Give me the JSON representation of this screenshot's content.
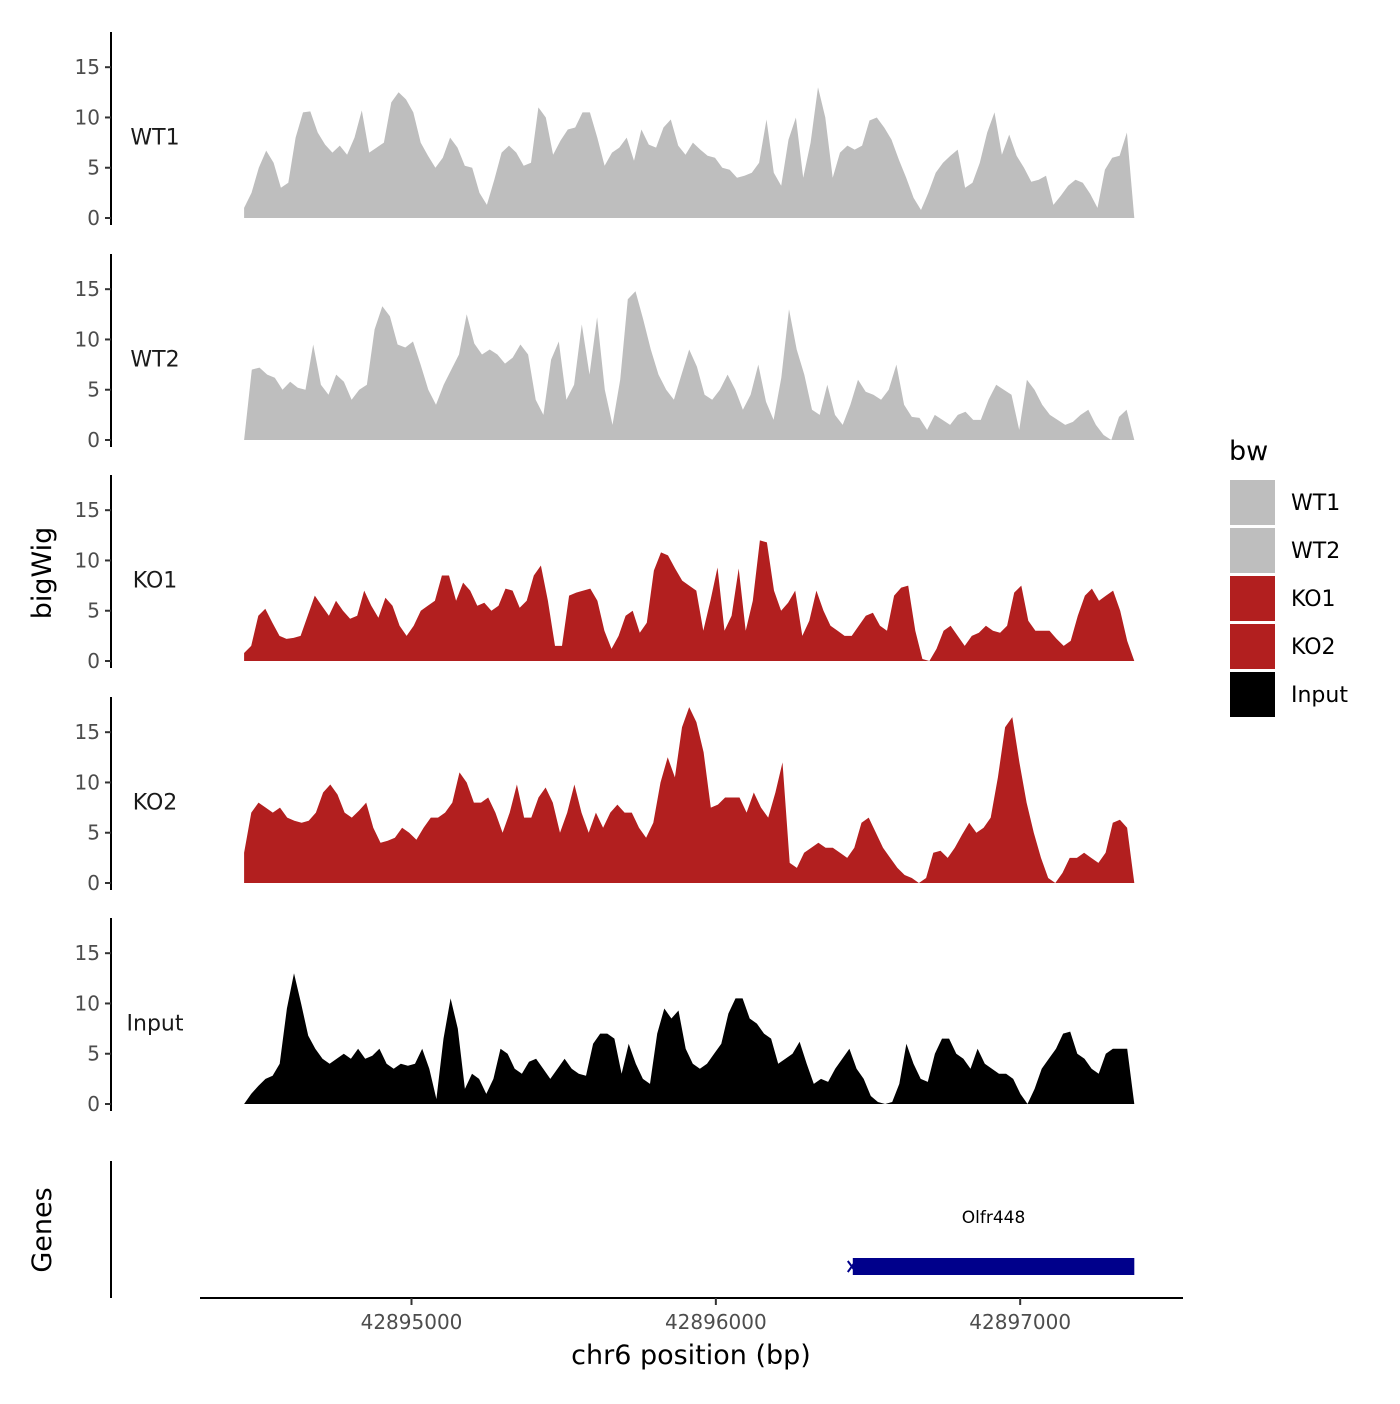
{
  "chart_data": {
    "type": "area",
    "chromosome": "chr6",
    "xlabel": "chr6 position (bp)",
    "ylabel": "bigWig",
    "gene_panel_label": "Genes",
    "xlim": [
      42894305,
      42897535
    ],
    "data_x_range": [
      42894450,
      42897375
    ],
    "x_ticks": [
      42895000,
      42896000,
      42897000
    ],
    "x_tick_labels": [
      "42895000",
      "42896000",
      "42897000"
    ],
    "ylim": [
      0,
      18.5
    ],
    "y_ticks": [
      0,
      5,
      10,
      15
    ],
    "y_tick_labels": [
      "0",
      "5",
      "10",
      "15"
    ],
    "grid": false,
    "legend": {
      "title": "bw",
      "position": "right",
      "entries": [
        {
          "name": "WT1",
          "color": "#bebebe"
        },
        {
          "name": "WT2",
          "color": "#bebebe"
        },
        {
          "name": "KO1",
          "color": "#b21f1f"
        },
        {
          "name": "KO2",
          "color": "#b21f1f"
        },
        {
          "name": "Input",
          "color": "#000000"
        }
      ]
    },
    "series": [
      {
        "name": "WT1",
        "color": "#bebebe",
        "values": [
          1,
          2.5,
          5,
          6.7,
          5.5,
          3,
          3.5,
          8,
          10.5,
          10.6,
          8.5,
          7.3,
          6.5,
          7.2,
          6.3,
          8,
          10.7,
          6.5,
          7,
          7.5,
          11.5,
          12.5,
          11.8,
          10.5,
          7.5,
          6.2,
          5,
          6,
          8,
          7,
          5.2,
          5,
          2.5,
          1.3,
          3.8,
          6.5,
          7.2,
          6.5,
          5.2,
          5.5,
          11,
          10,
          6.3,
          7.7,
          8.8,
          9,
          10.5,
          10.5,
          8,
          5.2,
          6.5,
          7,
          8,
          5.7,
          8.8,
          7.3,
          7,
          9,
          9.8,
          7.2,
          6.3,
          7.5,
          6.8,
          6.2,
          6,
          5,
          4.8,
          4,
          4.2,
          4.5,
          5.5,
          9.8,
          4.5,
          3.2,
          7.8,
          10,
          4,
          7.5,
          13,
          10,
          4,
          6.5,
          7.2,
          6.8,
          7.2,
          9.7,
          10,
          9,
          7.8,
          5.8,
          4,
          2,
          0.8,
          2.5,
          4.5,
          5.5,
          6.2,
          6.8,
          3,
          3.5,
          5.5,
          8.5,
          10.5,
          6.3,
          8.3,
          6.2,
          5,
          3.6,
          3.8,
          4.2,
          1.3,
          2.2,
          3.2,
          3.8,
          3.5,
          2.4,
          1,
          4.8,
          6,
          6.2,
          8.5,
          0
        ]
      },
      {
        "name": "WT2",
        "color": "#bebebe",
        "values": [
          0,
          7,
          7.2,
          6.5,
          6.2,
          5,
          5.8,
          5.2,
          5,
          9.5,
          5.5,
          4.5,
          6.5,
          5.8,
          4,
          5,
          5.5,
          11,
          13.3,
          12.3,
          9.5,
          9.2,
          9.8,
          7.5,
          5,
          3.5,
          5.5,
          7,
          8.5,
          12.5,
          9.6,
          8.5,
          9,
          8.5,
          7.6,
          8.2,
          9.5,
          8.5,
          4,
          2.5,
          8,
          9.8,
          4,
          5.5,
          11.5,
          6.5,
          12.2,
          5,
          1.5,
          6,
          14,
          14.8,
          12,
          9,
          6.5,
          5,
          4,
          6.5,
          9,
          7.3,
          4.5,
          4,
          5,
          6.5,
          5,
          3,
          4.5,
          7.5,
          3.8,
          2,
          6.2,
          13,
          9,
          6.5,
          3,
          2.5,
          5.5,
          2.5,
          1.5,
          3.5,
          6,
          4.8,
          4.5,
          4,
          5,
          7.5,
          3.5,
          2.3,
          2.2,
          1,
          2.5,
          2,
          1.5,
          2.5,
          2.8,
          2,
          2,
          4,
          5.5,
          5,
          4.5,
          1,
          6,
          5,
          3.5,
          2.5,
          2,
          1.5,
          1.8,
          2.5,
          3,
          1.5,
          0.5,
          0,
          2.3,
          3,
          0
        ]
      },
      {
        "name": "KO1",
        "color": "#b21f1f",
        "values": [
          0.8,
          1.5,
          4.5,
          5.2,
          3.8,
          2.5,
          2.2,
          2.3,
          2.5,
          4.5,
          6.5,
          5.5,
          4.5,
          6,
          5,
          4.2,
          4.5,
          7,
          5.5,
          4.3,
          6.3,
          5.5,
          3.5,
          2.5,
          3.5,
          5,
          5.5,
          6,
          8.5,
          8.5,
          6,
          7.8,
          7,
          5.5,
          5.8,
          5,
          5.5,
          7.2,
          7,
          5.3,
          6,
          8.5,
          9.5,
          6,
          1.5,
          1.5,
          6.5,
          6.8,
          7,
          7.2,
          6,
          3,
          1.2,
          2.5,
          4.5,
          5,
          2.8,
          3.8,
          9,
          10.8,
          10.5,
          9.2,
          8,
          7.5,
          7,
          3,
          6,
          9.3,
          3,
          4.5,
          9.2,
          3,
          6,
          12,
          11.8,
          7,
          5,
          5.8,
          7,
          2.5,
          4,
          7,
          5,
          3.5,
          3,
          2.5,
          2.5,
          3.5,
          4.5,
          4.8,
          3.5,
          3,
          6.5,
          7.3,
          7.5,
          3,
          0.2,
          0,
          1.2,
          3,
          3.5,
          2.5,
          1.5,
          2.5,
          2.8,
          3.5,
          3,
          2.8,
          3.5,
          6.8,
          7.5,
          4,
          3,
          3,
          3,
          2.2,
          1.5,
          2,
          4.5,
          6.5,
          7.2,
          6,
          6.5,
          7,
          5,
          2,
          0
        ]
      },
      {
        "name": "KO2",
        "color": "#b21f1f",
        "values": [
          3,
          7,
          8,
          7.5,
          7,
          7.5,
          6.5,
          6.2,
          6,
          6.2,
          7,
          9,
          9.8,
          8.8,
          7,
          6.5,
          7.2,
          8,
          5.5,
          4,
          4.2,
          4.5,
          5.5,
          5,
          4.3,
          5.5,
          6.5,
          6.5,
          7,
          8,
          11,
          10,
          8,
          8,
          8.5,
          7,
          5,
          7,
          9.8,
          6.5,
          6.5,
          8.5,
          9.5,
          8,
          5,
          7,
          9.8,
          7,
          5,
          7,
          5.5,
          7,
          7.8,
          7,
          7,
          5.5,
          4.5,
          6,
          10,
          12.5,
          10.5,
          15.5,
          17.5,
          16,
          13,
          7.5,
          7.8,
          8.5,
          8.5,
          8.5,
          7,
          9,
          7.5,
          6.5,
          9,
          12,
          2,
          1.5,
          3,
          3.5,
          4,
          3.5,
          3.5,
          3,
          2.5,
          3.5,
          6,
          6.5,
          5,
          3.5,
          2.5,
          1.5,
          0.8,
          0.5,
          0,
          0.5,
          3,
          3.2,
          2.5,
          3.5,
          4.8,
          6,
          5,
          5.5,
          6.5,
          10.5,
          15.5,
          16.5,
          12,
          8,
          5,
          2.5,
          0.5,
          0,
          1,
          2.5,
          2.5,
          3,
          2.5,
          2,
          3,
          6,
          6.3,
          5.5,
          0
        ]
      },
      {
        "name": "Input",
        "color": "#000000",
        "values": [
          0,
          1,
          1.8,
          2.5,
          2.8,
          4,
          9.5,
          13,
          10,
          6.8,
          5.5,
          4.5,
          4,
          4.5,
          5,
          4.5,
          5.5,
          4.5,
          4.8,
          5.5,
          4,
          3.5,
          4,
          3.8,
          4,
          5.5,
          3.5,
          0.5,
          6.5,
          10.5,
          7.5,
          1.5,
          3,
          2.5,
          1,
          2.5,
          5.5,
          5,
          3.5,
          3,
          4.2,
          4.5,
          3.5,
          2.5,
          3.5,
          4.5,
          3.5,
          3,
          2.8,
          6,
          7,
          7,
          6.5,
          3,
          6,
          4,
          2.5,
          2,
          7,
          9.5,
          8.5,
          9.3,
          5.5,
          4,
          3.5,
          4,
          5,
          6,
          9,
          10.5,
          10.5,
          8.5,
          8,
          7,
          6.5,
          4,
          4.5,
          5,
          6.2,
          4,
          2,
          2.5,
          2.2,
          3.5,
          4.5,
          5.5,
          3.5,
          2.5,
          0.8,
          0.2,
          0,
          0.2,
          2,
          6,
          4,
          2.5,
          2.2,
          5,
          6.5,
          6.5,
          5,
          4.5,
          3.5,
          5.5,
          4,
          3.5,
          3,
          3,
          2.5,
          1,
          0,
          1.5,
          3.5,
          4.5,
          5.5,
          7,
          7.2,
          5,
          4.5,
          3.5,
          3,
          5,
          5.5,
          5.5,
          5.5,
          0
        ]
      }
    ],
    "genes": [
      {
        "name": "Olfr448",
        "start": 42896450,
        "end": 42897375,
        "strand": "-",
        "color": "#00008b"
      }
    ]
  }
}
